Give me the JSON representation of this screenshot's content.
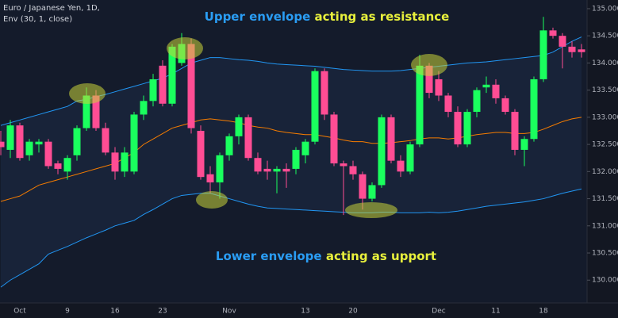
{
  "chart_data": {
    "type": "candlestick",
    "title": "Euro / Japanese Yen, 1D,",
    "subtitle": "Env (30, 1, close)",
    "annotations": [
      {
        "parts": [
          {
            "text": "Upper envelope",
            "color": "#2a9df4"
          },
          {
            "text": " acting as resistance",
            "color": "#e8f03c"
          }
        ]
      },
      {
        "parts": [
          {
            "text": "Lower envelope",
            "color": "#2a9df4"
          },
          {
            "text": " acting as upport",
            "color": "#e8f03c"
          }
        ]
      }
    ],
    "categories": [
      null,
      null,
      "Oct",
      null,
      null,
      null,
      null,
      "9",
      null,
      null,
      null,
      null,
      "16",
      null,
      null,
      null,
      null,
      "23",
      null,
      null,
      null,
      null,
      null,
      null,
      "Nov",
      null,
      null,
      null,
      null,
      null,
      null,
      null,
      "13",
      null,
      null,
      null,
      null,
      "20",
      null,
      null,
      null,
      null,
      null,
      null,
      null,
      null,
      "Dec",
      null,
      null,
      null,
      null,
      null,
      "11",
      null,
      null,
      null,
      null,
      "18",
      null,
      null,
      null,
      null
    ],
    "open": [
      132.55,
      132.4,
      132.85,
      132.3,
      132.5,
      132.55,
      132.15,
      132.0,
      132.3,
      132.8,
      133.4,
      132.8,
      132.35,
      132.0,
      132.0,
      133.05,
      133.3,
      133.95,
      133.25,
      134.0,
      134.35,
      132.75,
      131.95,
      131.8,
      132.3,
      132.65,
      133.0,
      132.25,
      132.05,
      132.0,
      132.05,
      132.05,
      132.3,
      132.55,
      133.85,
      133.05,
      132.15,
      132.1,
      131.95,
      131.5,
      131.75,
      133.0,
      132.2,
      132.0,
      132.5,
      133.95,
      133.7,
      133.4,
      133.1,
      132.5,
      133.1,
      133.55,
      133.6,
      133.35,
      133.1,
      132.4,
      132.6,
      133.7,
      134.6,
      134.5,
      134.3,
      134.25
    ],
    "high": [
      132.75,
      132.95,
      132.9,
      132.6,
      132.6,
      132.6,
      132.2,
      132.3,
      132.85,
      133.55,
      133.5,
      132.9,
      132.45,
      132.45,
      133.1,
      133.4,
      133.8,
      134.05,
      134.35,
      134.55,
      134.45,
      132.85,
      132.1,
      132.35,
      132.7,
      133.05,
      133.05,
      132.35,
      132.2,
      132.1,
      132.15,
      132.45,
      132.6,
      133.9,
      133.9,
      133.1,
      132.2,
      132.2,
      132.0,
      131.8,
      133.05,
      133.05,
      132.3,
      132.55,
      134.15,
      134.0,
      133.85,
      133.45,
      133.2,
      133.15,
      133.55,
      133.75,
      133.7,
      133.4,
      133.15,
      132.65,
      133.75,
      134.85,
      134.65,
      134.55,
      134.4,
      134.35
    ],
    "low": [
      132.3,
      132.25,
      132.2,
      132.2,
      132.35,
      132.05,
      131.95,
      131.85,
      132.2,
      132.75,
      132.75,
      132.3,
      131.85,
      131.9,
      131.95,
      132.95,
      133.2,
      133.2,
      133.2,
      133.95,
      132.7,
      131.85,
      131.6,
      131.5,
      132.2,
      132.5,
      132.2,
      131.95,
      131.85,
      131.6,
      131.7,
      131.95,
      132.15,
      132.5,
      132.95,
      132.1,
      131.2,
      131.85,
      131.3,
      131.45,
      131.7,
      132.15,
      131.9,
      131.95,
      132.45,
      133.35,
      133.3,
      133.0,
      132.45,
      132.45,
      133.0,
      133.45,
      133.25,
      133.05,
      132.3,
      132.1,
      132.55,
      133.65,
      134.45,
      133.9,
      134.1,
      134.1
    ],
    "close": [
      132.45,
      132.85,
      132.25,
      132.55,
      132.55,
      132.1,
      132.05,
      132.25,
      132.8,
      133.4,
      132.8,
      132.35,
      132.0,
      132.35,
      133.05,
      133.3,
      133.7,
      133.25,
      134.3,
      134.35,
      132.8,
      131.9,
      131.8,
      132.3,
      132.65,
      133.0,
      132.25,
      132.0,
      132.0,
      132.05,
      132.0,
      132.4,
      132.55,
      133.85,
      133.05,
      132.15,
      132.1,
      131.95,
      131.5,
      131.75,
      133.0,
      132.2,
      132.0,
      132.5,
      133.95,
      133.45,
      133.4,
      133.1,
      132.5,
      133.1,
      133.5,
      133.6,
      133.35,
      133.1,
      132.4,
      132.6,
      133.7,
      134.6,
      134.5,
      134.3,
      134.2,
      134.2
    ],
    "up_color": "#1aff5e",
    "down_color": "#ff4d94",
    "series": [
      {
        "color": "#2196f3",
        "values": [
          132.85,
          132.9,
          132.95,
          133.0,
          133.05,
          133.1,
          133.15,
          133.2,
          133.3,
          133.33,
          133.38,
          133.42,
          133.47,
          133.52,
          133.57,
          133.62,
          133.67,
          133.72,
          133.8,
          133.9,
          134.0,
          134.05,
          134.1,
          134.1,
          134.08,
          134.06,
          134.05,
          134.03,
          134.0,
          133.98,
          133.97,
          133.96,
          133.95,
          133.94,
          133.92,
          133.9,
          133.88,
          133.87,
          133.86,
          133.85,
          133.85,
          133.85,
          133.86,
          133.88,
          133.9,
          133.92,
          133.94,
          133.96,
          133.98,
          134.0,
          134.01,
          134.02,
          134.04,
          134.06,
          134.08,
          134.1,
          134.12,
          134.14,
          134.2,
          134.3,
          134.4,
          134.48
        ]
      },
      {
        "color": "#f57c00",
        "values": [
          131.45,
          131.5,
          131.55,
          131.65,
          131.75,
          131.8,
          131.85,
          131.9,
          131.95,
          132.0,
          132.05,
          132.1,
          132.15,
          132.25,
          132.35,
          132.5,
          132.6,
          132.7,
          132.8,
          132.85,
          132.9,
          132.95,
          132.97,
          132.95,
          132.93,
          132.9,
          132.85,
          132.82,
          132.8,
          132.75,
          132.72,
          132.7,
          132.68,
          132.68,
          132.65,
          132.62,
          132.58,
          132.55,
          132.55,
          132.52,
          132.52,
          132.53,
          132.55,
          132.57,
          132.6,
          132.62,
          132.62,
          132.6,
          132.62,
          132.65,
          132.68,
          132.7,
          132.72,
          132.72,
          132.7,
          132.7,
          132.72,
          132.78,
          132.85,
          132.92,
          132.97,
          133.0
        ]
      },
      {
        "color": "#2196f3",
        "values": [
          129.87,
          130.0,
          130.1,
          130.2,
          130.3,
          130.48,
          130.55,
          130.62,
          130.7,
          130.78,
          130.85,
          130.92,
          131.0,
          131.05,
          131.1,
          131.21,
          131.3,
          131.4,
          131.5,
          131.56,
          131.58,
          131.6,
          131.6,
          131.55,
          131.5,
          131.45,
          131.4,
          131.36,
          131.33,
          131.32,
          131.31,
          131.3,
          131.29,
          131.28,
          131.27,
          131.26,
          131.25,
          131.24,
          131.24,
          131.24,
          131.25,
          131.25,
          131.24,
          131.24,
          131.24,
          131.25,
          131.24,
          131.25,
          131.27,
          131.3,
          131.33,
          131.36,
          131.38,
          131.4,
          131.42,
          131.44,
          131.47,
          131.5,
          131.55,
          131.6,
          131.64,
          131.68
        ]
      }
    ],
    "ylim": [
      129.58,
      135.16
    ],
    "yticks": [
      {
        "value": 130,
        "label": "130.000"
      },
      {
        "value": 130.5,
        "label": "130.500"
      },
      {
        "value": 131,
        "label": "131.000"
      },
      {
        "value": 131.5,
        "label": "131.500"
      },
      {
        "value": 132,
        "label": "132.000"
      },
      {
        "value": 132.5,
        "label": "132.500"
      },
      {
        "value": 133,
        "label": "133.000"
      },
      {
        "value": 133.5,
        "label": "133.500"
      },
      {
        "value": 134,
        "label": "134.000"
      },
      {
        "value": 134.5,
        "label": "134.500"
      },
      {
        "value": 135,
        "label": "135.000"
      }
    ],
    "grid": false
  }
}
